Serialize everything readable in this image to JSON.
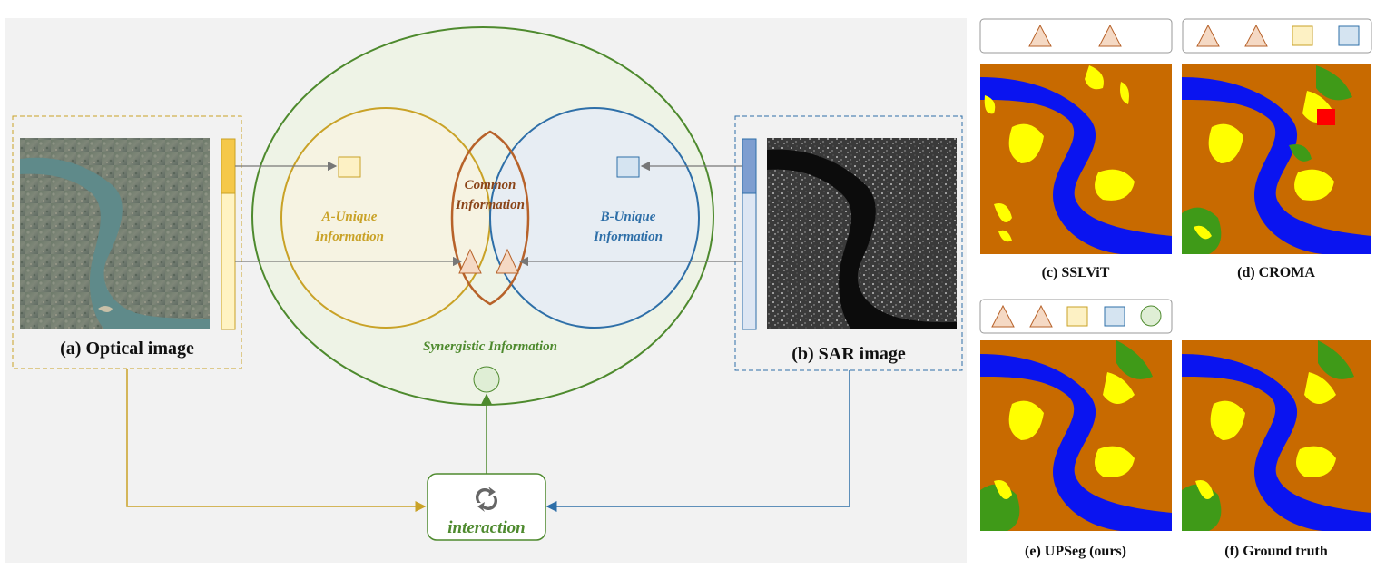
{
  "left_panel": {
    "optical_caption": "(a) Optical image",
    "sar_caption": "(b) SAR image",
    "a_unique": [
      "A-Unique",
      "Information"
    ],
    "b_unique": [
      "B-Unique",
      "Information"
    ],
    "common": [
      "Common",
      "Information"
    ],
    "synergistic": "Synergistic Information",
    "interaction": "interaction",
    "interaction_icon": "refresh-arrows-icon"
  },
  "results": {
    "c_caption": "(c) SSLViT",
    "d_caption": "(d) CROMA",
    "e_caption": "(e) UPSeg (ours)",
    "f_caption": "(f) Ground truth"
  },
  "colors": {
    "optical_accent": "#c9a227",
    "sar_accent": "#2e6fa8",
    "synergy_accent": "#4e8a2e",
    "common_accent": "#b7622a",
    "seg_land": "#c86a00",
    "seg_water": "#0a14f0",
    "seg_building": "#ffff00",
    "seg_vegetation": "#3f9a18",
    "seg_red": "#ff0000"
  }
}
